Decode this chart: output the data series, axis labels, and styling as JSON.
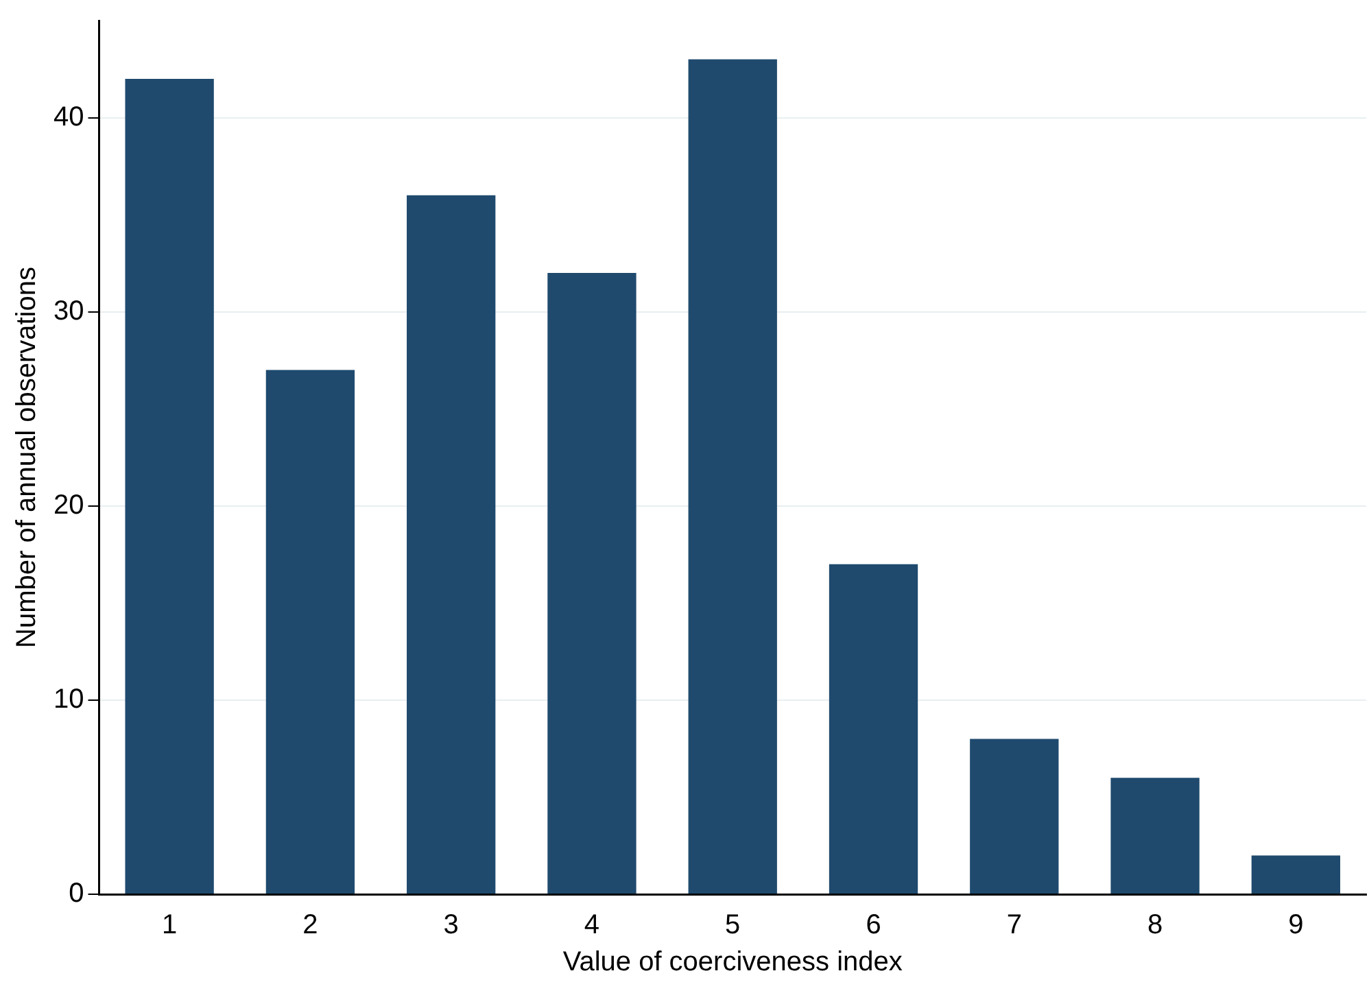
{
  "chart_data": {
    "type": "bar",
    "xlabel": "Value of coerciveness index",
    "ylabel": "Number of annual observations",
    "categories": [
      "1",
      "2",
      "3",
      "4",
      "5",
      "6",
      "7",
      "8",
      "9"
    ],
    "values": [
      42,
      27,
      36,
      32,
      43,
      17,
      8,
      6,
      2
    ],
    "color": "#1f4a6e",
    "ylim": [
      0,
      45
    ],
    "yticks": [
      0,
      10,
      20,
      30,
      40
    ],
    "grid": "y",
    "legend": false
  }
}
